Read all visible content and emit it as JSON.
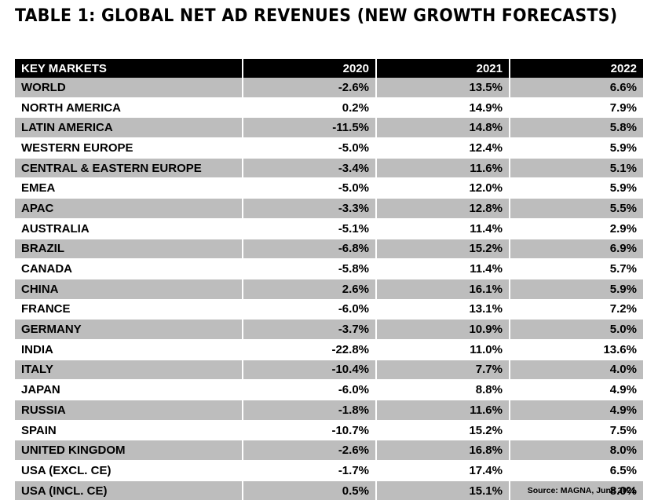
{
  "title": "TABLE 1: GLOBAL NET AD REVENUES (NEW GROWTH FORECASTS)",
  "table": {
    "headers": [
      "KEY MARKETS",
      "2020",
      "2021",
      "2022"
    ],
    "rows": [
      [
        "WORLD",
        "-2.6%",
        "13.5%",
        "6.6%"
      ],
      [
        "NORTH AMERICA",
        "0.2%",
        "14.9%",
        "7.9%"
      ],
      [
        "LATIN AMERICA",
        "-11.5%",
        "14.8%",
        "5.8%"
      ],
      [
        "WESTERN EUROPE",
        "-5.0%",
        "12.4%",
        "5.9%"
      ],
      [
        "CENTRAL & EASTERN EUROPE",
        "-3.4%",
        "11.6%",
        "5.1%"
      ],
      [
        "EMEA",
        "-5.0%",
        "12.0%",
        "5.9%"
      ],
      [
        "APAC",
        "-3.3%",
        "12.8%",
        "5.5%"
      ],
      [
        "AUSTRALIA",
        "-5.1%",
        "11.4%",
        "2.9%"
      ],
      [
        "BRAZIL",
        "-6.8%",
        "15.2%",
        "6.9%"
      ],
      [
        "CANADA",
        "-5.8%",
        "11.4%",
        "5.7%"
      ],
      [
        "CHINA",
        "2.6%",
        "16.1%",
        "5.9%"
      ],
      [
        "FRANCE",
        "-6.0%",
        "13.1%",
        "7.2%"
      ],
      [
        "GERMANY",
        "-3.7%",
        "10.9%",
        "5.0%"
      ],
      [
        "INDIA",
        "-22.8%",
        "11.0%",
        "13.6%"
      ],
      [
        "ITALY",
        "-10.4%",
        "7.7%",
        "4.0%"
      ],
      [
        "JAPAN",
        "-6.0%",
        "8.8%",
        "4.9%"
      ],
      [
        "RUSSIA",
        "-1.8%",
        "11.6%",
        "4.9%"
      ],
      [
        "SPAIN",
        "-10.7%",
        "15.2%",
        "7.5%"
      ],
      [
        "UNITED KINGDOM",
        "-2.6%",
        "16.8%",
        "8.0%"
      ],
      [
        "USA (EXCL. CE)",
        "-1.7%",
        "17.4%",
        "6.5%"
      ],
      [
        "USA (INCL. CE)",
        "0.5%",
        "15.1%",
        "8.0%"
      ]
    ]
  },
  "source": "Source: MAGNA, June 2021",
  "colors": {
    "header_bg": "#000000",
    "header_text": "#ffffff",
    "row_shade": "#bdbdbd",
    "row_plain": "#ffffff"
  }
}
